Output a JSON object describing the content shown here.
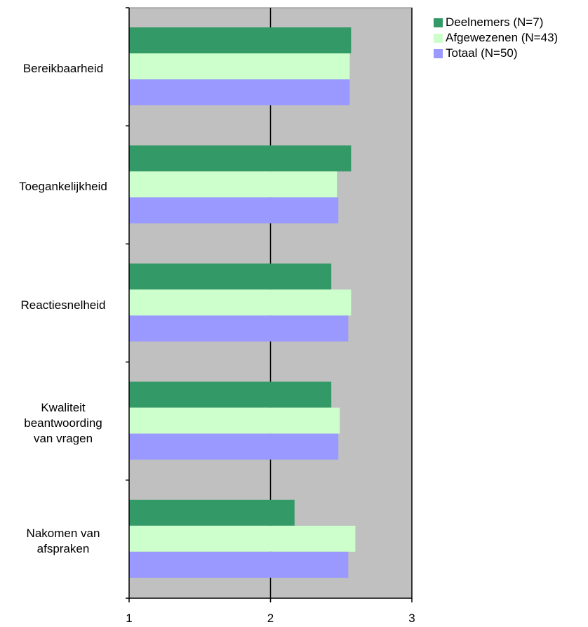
{
  "chart_data": {
    "type": "bar",
    "orientation": "horizontal",
    "categories": [
      "Bereikbaarheid",
      "Toegankelijkheid",
      "Reactiesnelheid",
      "Kwaliteit beantwoording van vragen",
      "Nakomen van afspraken"
    ],
    "category_lines": [
      [
        "Bereikbaarheid"
      ],
      [
        "Toegankelijkheid"
      ],
      [
        "Reactiesnelheid"
      ],
      [
        "Kwaliteit",
        "beantwoording",
        "van vragen"
      ],
      [
        "Nakomen van",
        "afspraken"
      ]
    ],
    "series": [
      {
        "name": "Deelnemers (N=7)",
        "color": "#339966",
        "values": [
          2.57,
          2.57,
          2.43,
          2.43,
          2.17
        ]
      },
      {
        "name": "Afgewezenen (N=43)",
        "color": "#ccffcc",
        "values": [
          2.56,
          2.47,
          2.57,
          2.49,
          2.6
        ]
      },
      {
        "name": "Totaal (N=50)",
        "color": "#9999ff",
        "values": [
          2.56,
          2.48,
          2.55,
          2.48,
          2.55
        ]
      }
    ],
    "xlim": [
      1,
      3
    ],
    "xticks": [
      "1",
      "2",
      "3"
    ],
    "grid": true,
    "plot_background": "#c0c0c0",
    "legend_position": "top-right",
    "title": "",
    "xlabel": "",
    "ylabel": ""
  }
}
